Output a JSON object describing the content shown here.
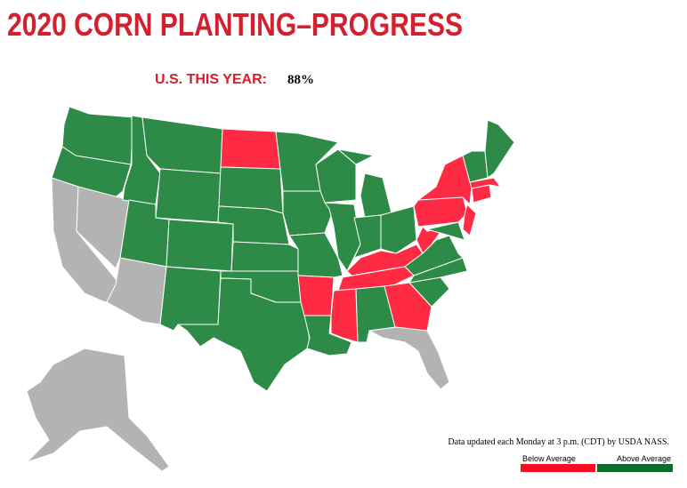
{
  "header": {
    "title": "2020 CORN PLANTING–PROGRESS"
  },
  "summary": {
    "label": "U.S. THIS YEAR:",
    "value": "88%"
  },
  "footnote": "Data updated each Monday at 3 p.m. (CDT) by USDA NASS.",
  "legend": [
    {
      "label": "Below Average",
      "color": "#ff0a24"
    },
    {
      "label": "Above Average",
      "color": "#0a6e2a"
    }
  ],
  "map_colors": {
    "below": "#ff2a44",
    "above": "#2e8b47"
  }
}
